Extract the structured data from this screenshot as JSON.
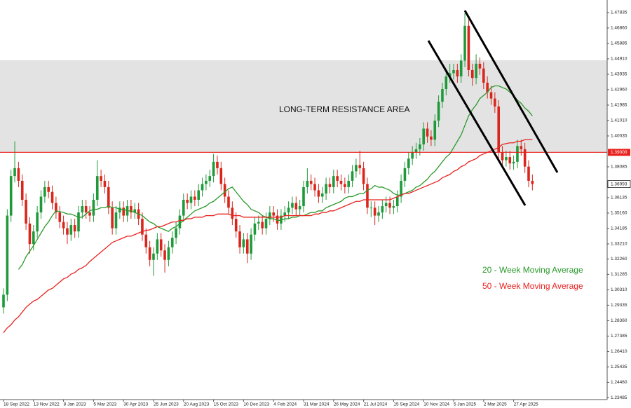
{
  "chart_data": {
    "type": "candlestick",
    "categories": [
      "18 Sep 2022",
      null,
      null,
      null,
      null,
      null,
      null,
      null,
      "13 Nov 2022",
      null,
      null,
      null,
      null,
      null,
      null,
      null,
      "8 Jan 2023",
      null,
      null,
      null,
      null,
      null,
      null,
      null,
      "5 Mar 2023",
      null,
      null,
      null,
      null,
      null,
      null,
      null,
      "30 Apr 2023",
      null,
      null,
      null,
      null,
      null,
      null,
      null,
      "25 Jun 2023",
      null,
      null,
      null,
      null,
      null,
      null,
      null,
      "20 Aug 2023",
      null,
      null,
      null,
      null,
      null,
      null,
      null,
      "15 Oct 2023",
      null,
      null,
      null,
      null,
      null,
      null,
      null,
      "10 Dec 2023",
      null,
      null,
      null,
      null,
      null,
      null,
      null,
      "4 Feb 2024",
      null,
      null,
      null,
      null,
      null,
      null,
      null,
      "31 Mar 2024",
      null,
      null,
      null,
      null,
      null,
      null,
      null,
      "26 May 2024",
      null,
      null,
      null,
      null,
      null,
      null,
      null,
      "21 Jul 2024",
      null,
      null,
      null,
      null,
      null,
      null,
      null,
      "15 Sep 2024",
      null,
      null,
      null,
      null,
      null,
      null,
      null,
      "10 Nov 2024",
      null,
      null,
      null,
      null,
      null,
      null,
      null,
      "5 Jan 2025",
      null,
      null,
      null,
      null,
      null,
      null,
      null,
      "2 Mar 2025",
      null,
      null,
      null,
      null,
      null,
      null,
      null,
      "27 Apr 2025",
      null,
      null,
      null,
      null,
      null
    ],
    "open": [
      1.292,
      1.3,
      1.35,
      1.375,
      1.38,
      1.372,
      1.36,
      1.345,
      1.332,
      1.34,
      1.352,
      1.362,
      1.368,
      1.365,
      1.358,
      1.352,
      1.346,
      1.342,
      1.338,
      1.344,
      1.34,
      1.352,
      1.356,
      1.352,
      1.35,
      1.36,
      1.375,
      1.372,
      1.368,
      1.355,
      1.342,
      1.352,
      1.355,
      1.35,
      1.356,
      1.352,
      1.354,
      1.348,
      1.338,
      1.33,
      1.322,
      1.326,
      1.335,
      1.328,
      1.322,
      1.33,
      1.336,
      1.342,
      1.35,
      1.36,
      1.358,
      1.362,
      1.36,
      1.366,
      1.37,
      1.372,
      1.375,
      1.384,
      1.38,
      1.37,
      1.362,
      1.355,
      1.348,
      1.34,
      1.33,
      1.335,
      1.326,
      1.338,
      1.345,
      1.346,
      1.342,
      1.348,
      1.352,
      1.35,
      1.345,
      1.35,
      1.352,
      1.355,
      1.358,
      1.354,
      1.356,
      1.368,
      1.372,
      1.37,
      1.366,
      1.362,
      1.364,
      1.37,
      1.368,
      1.375,
      1.372,
      1.37,
      1.368,
      1.372,
      1.378,
      1.382,
      1.38,
      1.37,
      1.355,
      1.355,
      1.35,
      1.352,
      1.356,
      1.358,
      1.355,
      1.356,
      1.362,
      1.372,
      1.38,
      1.386,
      1.39,
      1.392,
      1.395,
      1.405,
      1.4,
      1.398,
      1.41,
      1.422,
      1.43,
      1.438,
      1.44,
      1.442,
      1.438,
      1.448,
      1.47,
      1.442,
      1.437,
      1.446,
      1.443,
      1.434,
      1.428,
      1.424,
      1.419,
      1.39,
      1.385,
      1.387,
      1.383,
      1.384,
      1.394,
      1.392,
      1.381,
      1.372
    ],
    "high": [
      1.304,
      1.354,
      1.379,
      1.397,
      1.384,
      1.376,
      1.364,
      1.349,
      1.344,
      1.356,
      1.366,
      1.372,
      1.372,
      1.369,
      1.362,
      1.356,
      1.35,
      1.346,
      1.348,
      1.348,
      1.356,
      1.36,
      1.36,
      1.356,
      1.364,
      1.385,
      1.379,
      1.376,
      1.372,
      1.359,
      1.356,
      1.359,
      1.359,
      1.36,
      1.36,
      1.358,
      1.358,
      1.352,
      1.342,
      1.334,
      1.33,
      1.339,
      1.339,
      1.332,
      1.334,
      1.34,
      1.346,
      1.354,
      1.364,
      1.364,
      1.366,
      1.366,
      1.37,
      1.374,
      1.376,
      1.379,
      1.389,
      1.388,
      1.384,
      1.374,
      1.366,
      1.359,
      1.352,
      1.344,
      1.339,
      1.339,
      1.342,
      1.349,
      1.35,
      1.35,
      1.352,
      1.356,
      1.356,
      1.354,
      1.354,
      1.356,
      1.359,
      1.362,
      1.362,
      1.36,
      1.372,
      1.38,
      1.376,
      1.374,
      1.37,
      1.368,
      1.374,
      1.374,
      1.379,
      1.379,
      1.376,
      1.374,
      1.376,
      1.382,
      1.386,
      1.391,
      1.384,
      1.374,
      1.359,
      1.359,
      1.356,
      1.36,
      1.362,
      1.362,
      1.36,
      1.366,
      1.376,
      1.384,
      1.39,
      1.394,
      1.396,
      1.399,
      1.409,
      1.409,
      1.404,
      1.414,
      1.426,
      1.434,
      1.442,
      1.446,
      1.446,
      1.446,
      1.452,
      1.478,
      1.474,
      1.446,
      1.452,
      1.45,
      1.447,
      1.438,
      1.432,
      1.428,
      1.423,
      1.394,
      1.391,
      1.391,
      1.388,
      1.398,
      1.398,
      1.396,
      1.385,
      1.376
    ],
    "low": [
      1.288,
      1.296,
      1.346,
      1.371,
      1.368,
      1.356,
      1.341,
      1.326,
      1.328,
      1.336,
      1.348,
      1.358,
      1.361,
      1.354,
      1.348,
      1.342,
      1.338,
      1.332,
      1.334,
      1.336,
      1.336,
      1.348,
      1.348,
      1.346,
      1.346,
      1.356,
      1.368,
      1.364,
      1.351,
      1.338,
      1.338,
      1.348,
      1.346,
      1.346,
      1.348,
      1.348,
      1.344,
      1.334,
      1.326,
      1.318,
      1.312,
      1.322,
      1.324,
      1.314,
      1.318,
      1.326,
      1.332,
      1.338,
      1.346,
      1.354,
      1.354,
      1.356,
      1.356,
      1.362,
      1.366,
      1.368,
      1.371,
      1.376,
      1.366,
      1.358,
      1.351,
      1.344,
      1.336,
      1.326,
      1.326,
      1.32,
      1.322,
      1.334,
      1.341,
      1.338,
      1.338,
      1.344,
      1.346,
      1.341,
      1.341,
      1.346,
      1.348,
      1.351,
      1.35,
      1.35,
      1.352,
      1.364,
      1.366,
      1.362,
      1.358,
      1.358,
      1.36,
      1.364,
      1.364,
      1.368,
      1.366,
      1.364,
      1.364,
      1.368,
      1.374,
      1.376,
      1.366,
      1.351,
      1.349,
      1.344,
      1.346,
      1.348,
      1.352,
      1.351,
      1.351,
      1.352,
      1.358,
      1.368,
      1.376,
      1.382,
      1.386,
      1.388,
      1.391,
      1.396,
      1.394,
      1.394,
      1.406,
      1.418,
      1.426,
      1.434,
      1.436,
      1.434,
      1.434,
      1.444,
      1.438,
      1.432,
      1.433,
      1.439,
      1.43,
      1.424,
      1.42,
      1.415,
      1.386,
      1.381,
      1.381,
      1.379,
      1.379,
      1.38,
      1.388,
      1.377,
      1.368,
      1.366
    ],
    "close": [
      1.3,
      1.35,
      1.375,
      1.38,
      1.372,
      1.36,
      1.345,
      1.332,
      1.34,
      1.352,
      1.362,
      1.368,
      1.365,
      1.358,
      1.352,
      1.346,
      1.342,
      1.338,
      1.344,
      1.34,
      1.352,
      1.356,
      1.352,
      1.35,
      1.36,
      1.375,
      1.372,
      1.368,
      1.355,
      1.342,
      1.352,
      1.355,
      1.35,
      1.356,
      1.352,
      1.354,
      1.348,
      1.338,
      1.33,
      1.322,
      1.326,
      1.335,
      1.328,
      1.322,
      1.33,
      1.336,
      1.342,
      1.35,
      1.36,
      1.358,
      1.362,
      1.36,
      1.366,
      1.37,
      1.372,
      1.375,
      1.384,
      1.38,
      1.37,
      1.362,
      1.355,
      1.348,
      1.34,
      1.33,
      1.335,
      1.326,
      1.338,
      1.345,
      1.346,
      1.342,
      1.348,
      1.352,
      1.35,
      1.345,
      1.35,
      1.352,
      1.355,
      1.358,
      1.354,
      1.356,
      1.368,
      1.372,
      1.37,
      1.366,
      1.362,
      1.364,
      1.37,
      1.368,
      1.375,
      1.372,
      1.37,
      1.368,
      1.372,
      1.378,
      1.382,
      1.38,
      1.37,
      1.355,
      1.355,
      1.35,
      1.352,
      1.356,
      1.358,
      1.355,
      1.356,
      1.362,
      1.372,
      1.38,
      1.386,
      1.39,
      1.392,
      1.395,
      1.405,
      1.4,
      1.398,
      1.41,
      1.422,
      1.43,
      1.438,
      1.44,
      1.442,
      1.438,
      1.448,
      1.47,
      1.442,
      1.437,
      1.446,
      1.443,
      1.434,
      1.428,
      1.424,
      1.419,
      1.39,
      1.385,
      1.387,
      1.383,
      1.384,
      1.394,
      1.392,
      1.381,
      1.372,
      1.36993
    ],
    "up_color": "#1f9a3a",
    "down_color": "#d9261c",
    "series": [
      {
        "name": "20 - Week Moving Average",
        "color": "#2a9a2a",
        "values": [
          null,
          null,
          null,
          null,
          1.316,
          1.319,
          1.324,
          1.3275,
          1.331,
          1.335,
          1.339,
          1.343,
          1.346,
          1.35,
          1.353,
          1.3525,
          1.352,
          1.351,
          1.351,
          1.35,
          1.349,
          1.349,
          1.351,
          1.353,
          1.354,
          1.354,
          1.355,
          1.355,
          1.356,
          1.355,
          1.355,
          1.354,
          1.354,
          1.353,
          1.353,
          1.352,
          1.351,
          1.35,
          1.348,
          1.346,
          1.345,
          1.343,
          1.342,
          1.341,
          1.34,
          1.342,
          1.343,
          1.345,
          1.347,
          1.349,
          1.351,
          1.353,
          1.354,
          1.355,
          1.356,
          1.358,
          1.359,
          1.361,
          1.363,
          1.365,
          1.367,
          1.368,
          1.365,
          1.362,
          1.359,
          1.357,
          1.354,
          1.353,
          1.352,
          1.35,
          1.349,
          1.348,
          1.348,
          1.347,
          1.347,
          1.348,
          1.348,
          1.349,
          1.349,
          1.35,
          1.35,
          1.351,
          1.352,
          1.352,
          1.353,
          1.353,
          1.355,
          1.356,
          1.357,
          1.358,
          1.359,
          1.361,
          1.362,
          1.362,
          1.363,
          1.364,
          1.364,
          1.366,
          1.367,
          1.369,
          1.368,
          1.368,
          1.367,
          1.366,
          1.364,
          1.363,
          1.363,
          1.364,
          1.365,
          1.366,
          1.368,
          1.369,
          1.371,
          1.373,
          1.376,
          1.378,
          1.381,
          1.384,
          1.387,
          1.389,
          1.393,
          1.397,
          1.401,
          1.407,
          1.413,
          1.417,
          1.42,
          1.424,
          1.426,
          1.428,
          1.431,
          1.432,
          1.432,
          1.431,
          1.43,
          1.428,
          1.426,
          1.423,
          1.421,
          1.418,
          1.416,
          1.413
        ]
      },
      {
        "name": "50 - Week Moving Average",
        "color": "#e8231f",
        "values": [
          1.276,
          1.279,
          1.281,
          1.284,
          1.286,
          1.289,
          1.292,
          1.294,
          1.296,
          1.297,
          1.299,
          1.301,
          1.303,
          1.304,
          1.306,
          1.308,
          1.31,
          1.311,
          1.313,
          1.314,
          1.316,
          1.317,
          1.3185,
          1.321,
          1.323,
          1.325,
          1.327,
          1.329,
          1.331,
          1.333,
          1.334,
          1.335,
          1.336,
          1.337,
          1.337,
          1.338,
          1.339,
          1.34,
          1.3406,
          1.341,
          1.342,
          1.343,
          1.343,
          1.344,
          1.345,
          1.346,
          1.346,
          1.347,
          1.347,
          1.348,
          1.348,
          1.349,
          1.349,
          1.349,
          1.35,
          1.35,
          1.35,
          1.351,
          1.351,
          1.351,
          1.351,
          1.35,
          1.35,
          1.35,
          1.349,
          1.349,
          1.349,
          1.349,
          1.349,
          1.349,
          1.349,
          1.349,
          1.349,
          1.349,
          1.349,
          1.35,
          1.35,
          1.35,
          1.35,
          1.35,
          1.35,
          1.35,
          1.35,
          1.351,
          1.351,
          1.352,
          1.352,
          1.353,
          1.353,
          1.354,
          1.355,
          1.356,
          1.357,
          1.358,
          1.359,
          1.359,
          1.36,
          1.36,
          1.36,
          1.36,
          1.36,
          1.36,
          1.36,
          1.36,
          1.361,
          1.362,
          1.363,
          1.364,
          1.364,
          1.365,
          1.366,
          1.367,
          1.368,
          1.369,
          1.37,
          1.371,
          1.372,
          1.374,
          1.375,
          1.376,
          1.378,
          1.379,
          1.381,
          1.382,
          1.384,
          1.385,
          1.386,
          1.388,
          1.389,
          1.39,
          1.391,
          1.392,
          1.393,
          1.395,
          1.3955,
          1.396,
          1.396,
          1.397,
          1.397,
          1.398,
          1.398,
          1.398
        ]
      }
    ],
    "ylim": [
      1.2337,
      1.4863
    ],
    "yticks": [
      1.47835,
      {
        "value": 1.4686,
        "label": "1.46860"
      },
      1.45885,
      {
        "value": 1.4491,
        "label": "1.44910"
      },
      1.43935,
      {
        "value": 1.4296,
        "label": "1.42960"
      },
      1.41985,
      {
        "value": 1.4101,
        "label": "1.41010"
      },
      1.40035,
      1.38085,
      1.36135,
      {
        "value": 1.3516,
        "label": "1.35160"
      },
      1.34185,
      {
        "value": 1.3321,
        "label": "1.33210"
      },
      {
        "value": 1.3226,
        "label": "1.32260"
      },
      1.31285,
      {
        "value": 1.3031,
        "label": "1.30310"
      },
      1.29335,
      {
        "value": 1.2836,
        "label": "1.28360"
      },
      1.27385,
      {
        "value": 1.2641,
        "label": "1.26410"
      },
      1.25435,
      {
        "value": 1.2446,
        "label": "1.24460"
      },
      1.23485
    ],
    "resistance_zone": {
      "label": "LONG-TERM RESISTANCE AREA",
      "range": [
        1.39,
        1.4482
      ],
      "color": "#d9d9d9"
    },
    "resistance_line": {
      "value": 1.39,
      "label": "1.39000",
      "color": "#e8231f"
    }
  }
}
